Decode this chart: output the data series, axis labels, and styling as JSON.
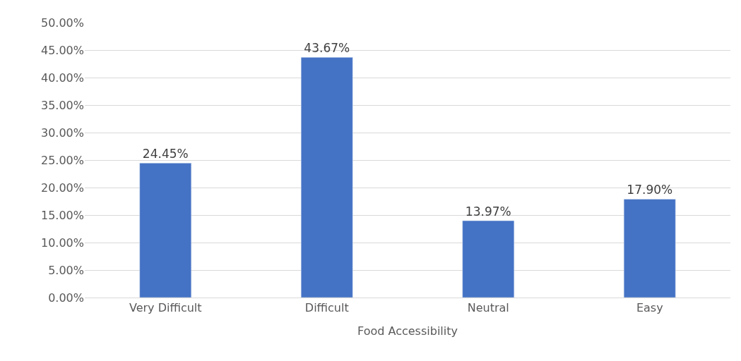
{
  "chart_data": {
    "type": "bar",
    "xlabel": "Food Accessibility",
    "categories": [
      "Very Difficult",
      "Difficult",
      "Neutral",
      "Easy"
    ],
    "values": [
      24.45,
      43.67,
      13.97,
      17.9
    ],
    "value_labels": [
      "24.45%",
      "43.67%",
      "13.97%",
      "17.90%"
    ],
    "color": "#4472c4",
    "ylim": [
      0,
      50
    ],
    "yticks": [
      {
        "value": 0,
        "label": "0.00%"
      },
      {
        "value": 5,
        "label": "5.00%"
      },
      {
        "value": 10,
        "label": "10.00%"
      },
      {
        "value": 15,
        "label": "15.00%"
      },
      {
        "value": 20,
        "label": "20.00%"
      },
      {
        "value": 25,
        "label": "25.00%"
      },
      {
        "value": 30,
        "label": "30.00%"
      },
      {
        "value": 35,
        "label": "35.00%"
      },
      {
        "value": 40,
        "label": "40.00%"
      },
      {
        "value": 45,
        "label": "45.00%"
      },
      {
        "value": 50,
        "label": "50.00%"
      }
    ],
    "grid": "y"
  }
}
